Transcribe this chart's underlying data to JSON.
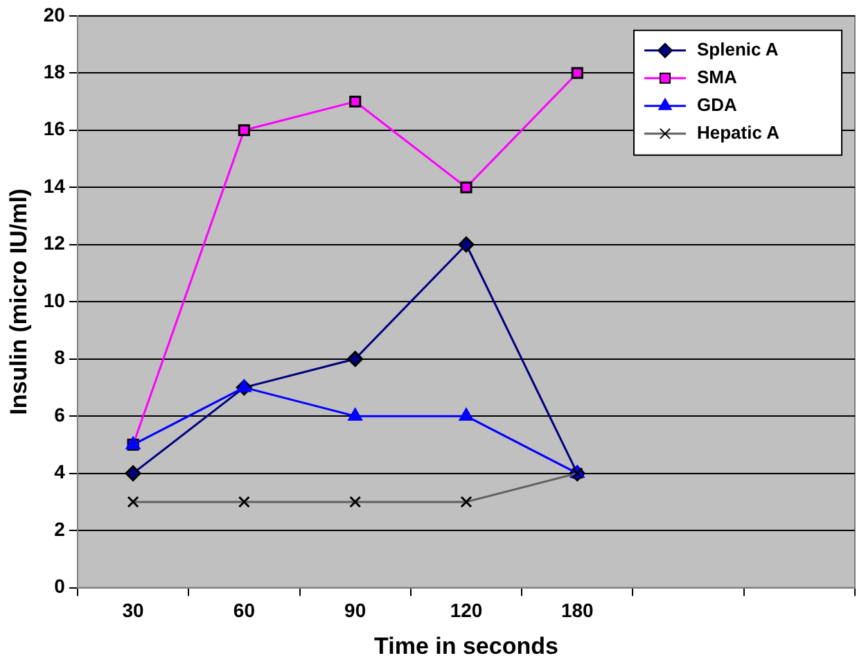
{
  "chart_data": {
    "type": "line",
    "xlabel": "Time in seconds",
    "ylabel": "Insulin (micro IU/ml)",
    "categories": [
      "30",
      "60",
      "90",
      "120",
      "180",
      null,
      null
    ],
    "series": [
      {
        "name": "Splenic A",
        "color": "#000080",
        "marker": "diamond",
        "values": [
          4,
          7,
          8,
          12,
          4,
          null,
          null
        ]
      },
      {
        "name": "SMA",
        "color": "#ff00ff",
        "marker": "square",
        "values": [
          5,
          16,
          17,
          14,
          18,
          null,
          null
        ]
      },
      {
        "name": "GDA",
        "color": "#0000ff",
        "marker": "triangle",
        "values": [
          5,
          7,
          6,
          6,
          4,
          null,
          null
        ]
      },
      {
        "name": "Hepatic A",
        "color": "#606060",
        "marker": "cross",
        "values": [
          3,
          3,
          3,
          3,
          4,
          null,
          null
        ]
      }
    ],
    "ylim": [
      0,
      20
    ],
    "yticks": [
      0,
      2,
      4,
      6,
      8,
      10,
      12,
      14,
      16,
      18,
      20
    ],
    "grid": "y",
    "legend": "top right",
    "line_style": "solid"
  }
}
